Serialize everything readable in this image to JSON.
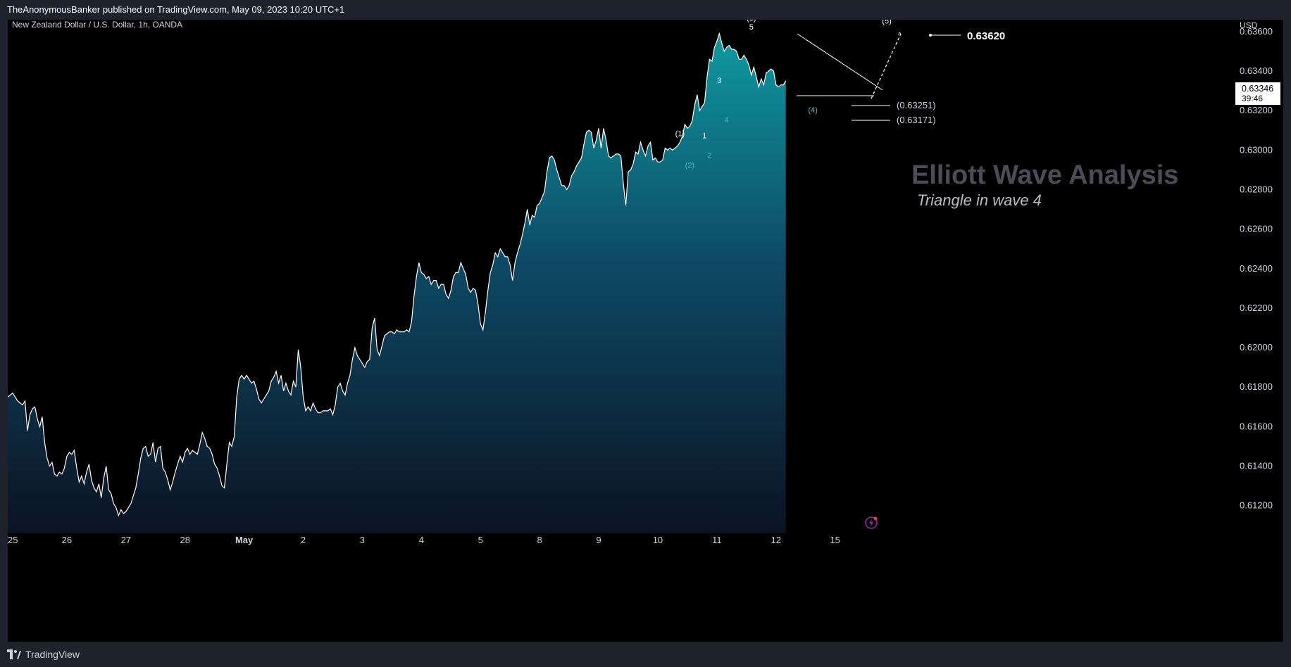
{
  "header": {
    "publisher_line": "TheAnonymousBanker published on TradingView.com, May 09, 2023 10:20 UTC+1"
  },
  "chart": {
    "symbol_line": "New Zealand Dollar / U.S. Dollar, 1h, OANDA",
    "currency": "USD",
    "title": "Elliott Wave Analysis",
    "subtitle": "Triangle in wave 4",
    "last_price": "0.63346",
    "countdown": "39:46",
    "target_price": "0.63620",
    "level_1": "(0.63251)",
    "level_2": "(0.63171)"
  },
  "footer": {
    "brand": "TradingView"
  },
  "colors": {
    "background": "#000000",
    "frame": "#1e222d",
    "line": "#ffffff",
    "fill_top": "#0f9aa0",
    "fill_bottom": "#0b1322",
    "wave_white": "#ffffff",
    "wave_teal": "#4fb8c8",
    "title": "#4a4d57",
    "subtitle": "#b8bcc6",
    "alert_icon": "#9c27b0"
  },
  "icons": [
    "lightning-alert-icon",
    "tradingview-logo-icon"
  ],
  "chart_data": {
    "type": "area",
    "title": "Elliott Wave Analysis",
    "subtitle": "Triangle in wave 4",
    "xlabel": "",
    "ylabel": "",
    "ylim": [
      0.6106,
      0.6366
    ],
    "y_ticks": [
      "0.63600",
      "0.63400",
      "0.63200",
      "0.63000",
      "0.62800",
      "0.62600",
      "0.62400",
      "0.62200",
      "0.62000",
      "0.61800",
      "0.61600",
      "0.61400",
      "0.61200"
    ],
    "x_ticks": [
      "25",
      "26",
      "27",
      "28",
      "May",
      "2",
      "3",
      "4",
      "5",
      "8",
      "9",
      "10",
      "11",
      "12",
      "15"
    ],
    "x_tick_index": [
      0,
      24,
      48,
      72,
      96,
      120,
      144,
      168,
      192,
      216,
      240,
      264,
      288,
      312,
      336
    ],
    "grid": false,
    "series": [
      {
        "values": [
          0.6175,
          0.6176,
          0.6177,
          0.6175,
          0.6173,
          0.6172,
          0.6171,
          0.6173,
          0.6158,
          0.6166,
          0.6169,
          0.617,
          0.6164,
          0.616,
          0.6165,
          0.6152,
          0.6144,
          0.614,
          0.6142,
          0.6136,
          0.6135,
          0.6137,
          0.6136,
          0.6139,
          0.6145,
          0.6147,
          0.6146,
          0.6148,
          0.6139,
          0.6132,
          0.6135,
          0.6131,
          0.6137,
          0.6141,
          0.6133,
          0.6129,
          0.6127,
          0.6131,
          0.6124,
          0.6134,
          0.614,
          0.6128,
          0.6126,
          0.6121,
          0.6119,
          0.6115,
          0.6118,
          0.6116,
          0.6117,
          0.6119,
          0.6121,
          0.6125,
          0.6129,
          0.6136,
          0.6144,
          0.6149,
          0.615,
          0.6145,
          0.6146,
          0.6152,
          0.6142,
          0.6149,
          0.615,
          0.6139,
          0.6137,
          0.6133,
          0.6128,
          0.6132,
          0.6137,
          0.6141,
          0.6145,
          0.6142,
          0.6147,
          0.6149,
          0.6146,
          0.6148,
          0.6147,
          0.6146,
          0.6151,
          0.6157,
          0.6154,
          0.615,
          0.6149,
          0.6146,
          0.6141,
          0.6139,
          0.6135,
          0.613,
          0.6129,
          0.6141,
          0.6152,
          0.615,
          0.6155,
          0.6175,
          0.6184,
          0.6186,
          0.6184,
          0.6186,
          0.6184,
          0.6182,
          0.6183,
          0.6179,
          0.6174,
          0.6172,
          0.6174,
          0.6176,
          0.6178,
          0.6183,
          0.6185,
          0.6188,
          0.6182,
          0.6186,
          0.6178,
          0.6182,
          0.6178,
          0.6176,
          0.6183,
          0.618,
          0.6199,
          0.619,
          0.6175,
          0.6168,
          0.617,
          0.6168,
          0.6172,
          0.6169,
          0.6167,
          0.6167,
          0.6168,
          0.6168,
          0.6168,
          0.6169,
          0.6166,
          0.6171,
          0.618,
          0.6182,
          0.6178,
          0.6176,
          0.6182,
          0.6186,
          0.6194,
          0.62,
          0.6196,
          0.6194,
          0.6192,
          0.619,
          0.6193,
          0.6194,
          0.621,
          0.6215,
          0.6199,
          0.6196,
          0.6201,
          0.6206,
          0.6207,
          0.6208,
          0.6208,
          0.6207,
          0.6209,
          0.6208,
          0.6208,
          0.6208,
          0.6209,
          0.6208,
          0.6213,
          0.6226,
          0.6236,
          0.6243,
          0.6238,
          0.6237,
          0.6235,
          0.6236,
          0.6232,
          0.6234,
          0.6234,
          0.623,
          0.6232,
          0.6232,
          0.6227,
          0.6225,
          0.6229,
          0.6236,
          0.6238,
          0.6238,
          0.6243,
          0.624,
          0.6237,
          0.623,
          0.6228,
          0.623,
          0.6229,
          0.6222,
          0.6212,
          0.6209,
          0.6218,
          0.6229,
          0.6238,
          0.6242,
          0.6248,
          0.6246,
          0.625,
          0.6248,
          0.6246,
          0.6246,
          0.6242,
          0.6234,
          0.6243,
          0.6248,
          0.6252,
          0.6257,
          0.6263,
          0.627,
          0.6262,
          0.6267,
          0.6266,
          0.6272,
          0.6273,
          0.6276,
          0.6279,
          0.6289,
          0.6296,
          0.6297,
          0.6295,
          0.629,
          0.6286,
          0.6282,
          0.6282,
          0.628,
          0.6282,
          0.6287,
          0.6289,
          0.6292,
          0.6294,
          0.6296,
          0.6303,
          0.6309,
          0.631,
          0.6309,
          0.6301,
          0.6305,
          0.6311,
          0.6301,
          0.6311,
          0.6305,
          0.6297,
          0.6296,
          0.6297,
          0.6298,
          0.6298,
          0.6297,
          0.6283,
          0.6272,
          0.6289,
          0.629,
          0.6293,
          0.6299,
          0.6298,
          0.6304,
          0.63,
          0.6297,
          0.6302,
          0.6304,
          0.6295,
          0.6296,
          0.6294,
          0.6294,
          0.6295,
          0.6301,
          0.63,
          0.6301,
          0.63,
          0.6301,
          0.6302,
          0.6304,
          0.6307,
          0.6313,
          0.6311,
          0.6312,
          0.6315,
          0.6323,
          0.6328,
          0.632,
          0.6322,
          0.6324,
          0.6337,
          0.6346,
          0.6345,
          0.6352,
          0.6355,
          0.6359,
          0.6354,
          0.635,
          0.6352,
          0.6353,
          0.6351,
          0.6351,
          0.635,
          0.6346,
          0.6346,
          0.6348,
          0.6346,
          0.6343,
          0.6338,
          0.6342,
          0.6337,
          0.6332,
          0.6336,
          0.6333,
          0.6339,
          0.634,
          0.6341,
          0.634,
          0.6333,
          0.6332,
          0.6333,
          0.6333,
          0.6335
        ]
      }
    ],
    "annotations": [
      {
        "text": "(3)",
        "x_index": 302,
        "y": 0.63655
      },
      {
        "text": "5",
        "x_index": 302,
        "y": 0.6361
      },
      {
        "text": "3",
        "x_index": 289,
        "y": 0.6334
      },
      {
        "text": "4",
        "x_index": 292,
        "y": 0.6314
      },
      {
        "text": "(1)",
        "x_index": 273,
        "y": 0.6307
      },
      {
        "text": "1",
        "x_index": 283,
        "y": 0.6306
      },
      {
        "text": "2",
        "x_index": 285,
        "y": 0.6296
      },
      {
        "text": "(2)",
        "x_index": 277,
        "y": 0.6291
      },
      {
        "text": "(4)",
        "x_index": 327,
        "y": 0.6319
      },
      {
        "text": "(5)",
        "x_index": 357,
        "y": 0.6364
      }
    ],
    "levels": [
      {
        "label": "(0.63251)",
        "value": 0.63251
      },
      {
        "label": "(0.63171)",
        "value": 0.63171
      }
    ],
    "target": {
      "label": "0.63620",
      "value": 0.6362
    },
    "last_price": 0.63346
  }
}
